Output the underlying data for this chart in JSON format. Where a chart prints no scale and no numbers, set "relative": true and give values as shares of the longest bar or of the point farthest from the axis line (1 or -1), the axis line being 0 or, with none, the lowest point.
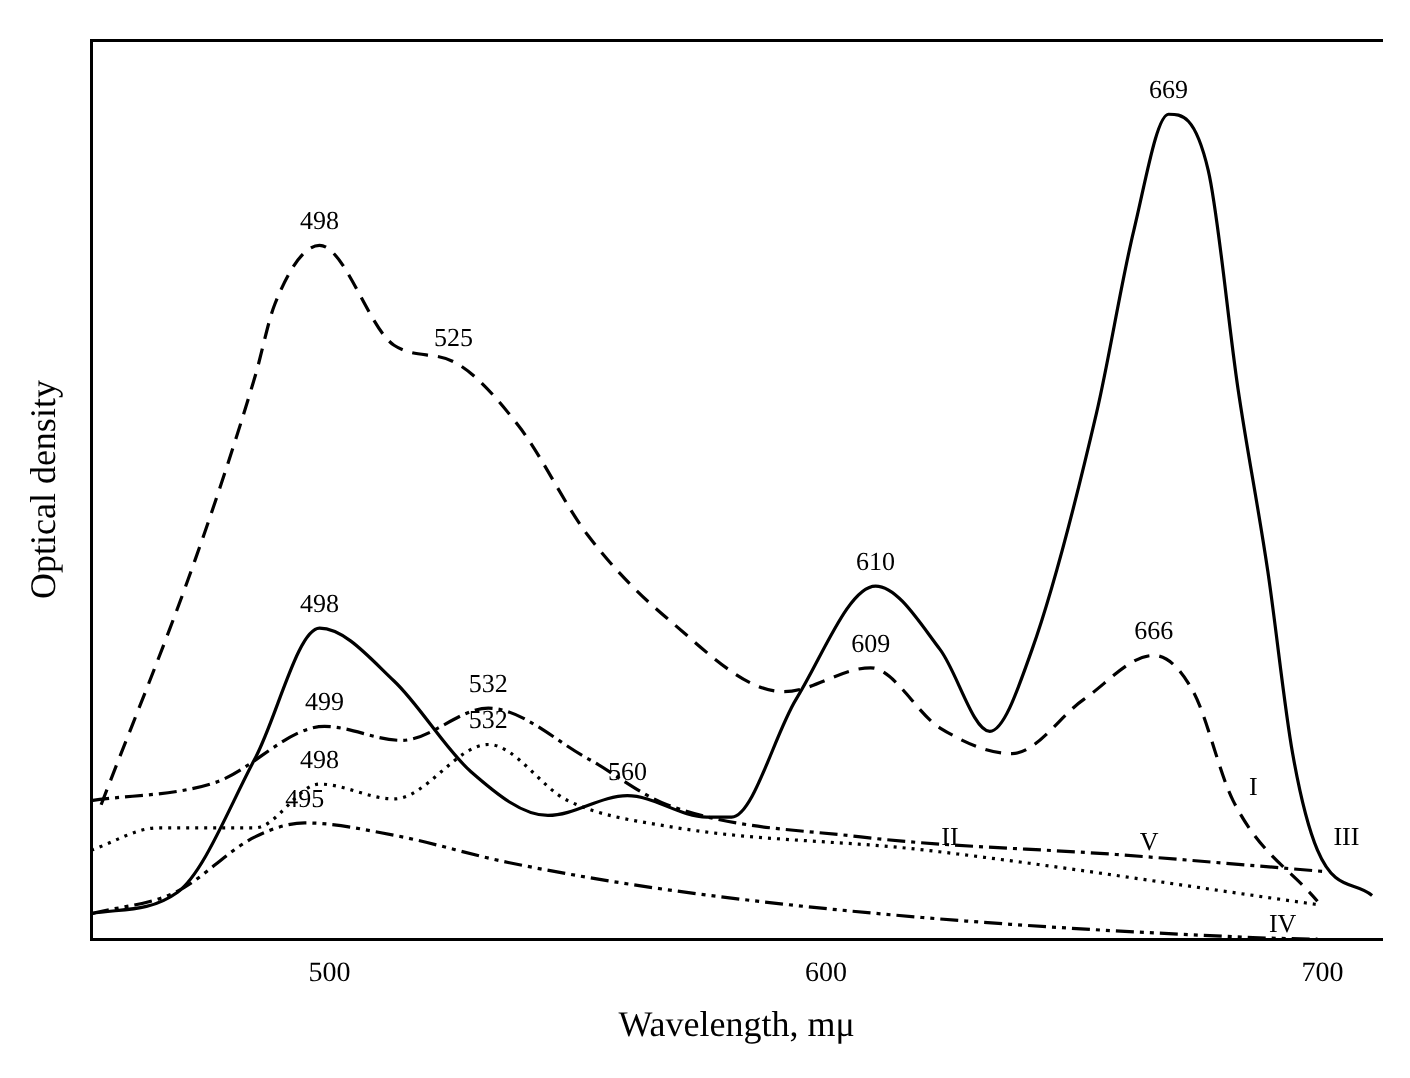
{
  "chart_data": {
    "type": "line",
    "xlabel": "Wavelength, mμ",
    "ylabel": "Optical density",
    "relative": true,
    "xlim": [
      452,
      712
    ],
    "xticks": [
      500,
      600,
      700
    ],
    "grid": false,
    "legend": false,
    "marker": "none",
    "series": [
      {
        "name": "I",
        "color": "#000000",
        "line_style": "dashed",
        "x": [
          454,
          473,
          485,
          489,
          498,
          513,
          525,
          538,
          552,
          568,
          591.5,
          609,
          623,
          637.5,
          652,
          666,
          674,
          682,
          699
        ],
        "values": [
          0.163,
          0.461,
          0.682,
          0.77,
          0.841,
          0.72,
          0.7,
          0.623,
          0.49,
          0.389,
          0.3,
          0.329,
          0.256,
          0.225,
          0.291,
          0.344,
          0.3,
          0.168,
          0.046
        ]
      },
      {
        "name": "II",
        "color": "#000000",
        "line_style": "dotted",
        "x": [
          452,
          465.5,
          485,
          498,
          513,
          532,
          548,
          568,
          620,
          699
        ],
        "values": [
          0.108,
          0.135,
          0.135,
          0.188,
          0.17,
          0.236,
          0.168,
          0.137,
          0.108,
          0.042
        ]
      },
      {
        "name": "III",
        "color": "#000000",
        "line_style": "solid",
        "x": [
          452,
          469.4,
          485,
          498,
          513,
          528.5,
          544,
          560,
          576,
          581,
          594,
          610,
          623,
          633,
          641.5,
          654.5,
          662,
          669,
          677,
          683,
          689,
          694,
          699,
          710
        ],
        "values": [
          0.031,
          0.057,
          0.219,
          0.377,
          0.313,
          0.203,
          0.15,
          0.174,
          0.148,
          0.148,
          0.291,
          0.428,
          0.351,
          0.252,
          0.351,
          0.638,
          0.859,
          1,
          0.932,
          0.667,
          0.446,
          0.225,
          0.108,
          0.053
        ]
      },
      {
        "name": "IV",
        "color": "#000000",
        "line_style": "dashdotdot",
        "x": [
          452,
          469,
          485,
          495,
          513,
          536,
          568,
          620,
          686,
          699
        ],
        "values": [
          0.031,
          0.057,
          0.124,
          0.141,
          0.126,
          0.093,
          0.06,
          0.026,
          0.002,
          0
        ]
      },
      {
        "name": "V",
        "color": "#000000",
        "line_style": "dashdot",
        "x": [
          452,
          477,
          499,
          514.5,
          532,
          552,
          568,
          607,
          660,
          700.5
        ],
        "values": [
          0.168,
          0.19,
          0.258,
          0.241,
          0.28,
          0.219,
          0.163,
          0.124,
          0.102,
          0.082
        ]
      }
    ],
    "annotations": [
      {
        "text": "498",
        "x": 498,
        "y": 0.841
      },
      {
        "text": "525",
        "x": 525,
        "y": 0.7
      },
      {
        "text": "609",
        "x": 609,
        "y": 0.329
      },
      {
        "text": "666",
        "x": 666,
        "y": 0.344
      },
      {
        "text": "498",
        "x": 498,
        "y": 0.377
      },
      {
        "text": "610",
        "x": 610,
        "y": 0.428
      },
      {
        "text": "669",
        "x": 669,
        "y": 1
      },
      {
        "text": "560",
        "x": 560,
        "y": 0.174
      },
      {
        "text": "499",
        "x": 499,
        "y": 0.258
      },
      {
        "text": "532",
        "x": 532,
        "y": 0.28
      },
      {
        "text": "498",
        "x": 498,
        "y": 0.188
      },
      {
        "text": "532",
        "x": 532,
        "y": 0.236
      },
      {
        "text": "495",
        "x": 495,
        "y": 0.141
      }
    ]
  }
}
